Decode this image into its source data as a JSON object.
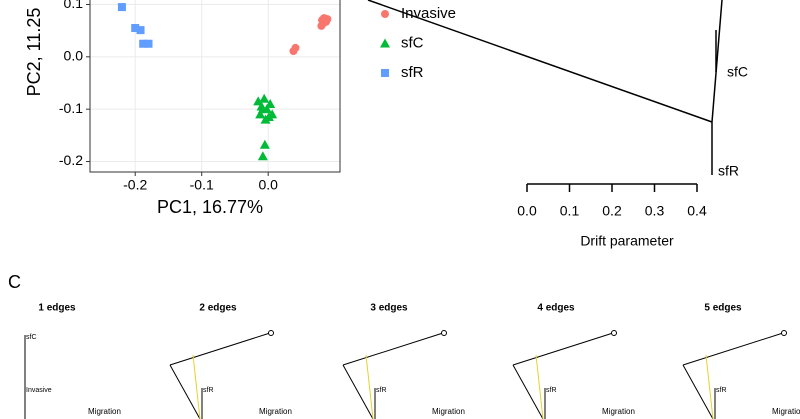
{
  "chart_data": {
    "type": "scatter",
    "x_label": "PC1, 16.77%",
    "y_label": "PC2, 11.25",
    "xlim": [
      -0.268,
      0.108
    ],
    "ylim": [
      -0.22,
      0.12
    ],
    "xticks": [
      -0.2,
      -0.1,
      {
        "value": 0,
        "label": "0.0"
      }
    ],
    "yticks": [
      -0.2,
      -0.1,
      {
        "value": 0,
        "label": "0.0"
      },
      0.1
    ],
    "grid": true,
    "series": [
      {
        "name": "Invasive",
        "color": "#F8766D",
        "marker": "circle",
        "x": [
          0.081,
          0.084,
          0.087,
          0.08,
          0.089,
          0.083,
          0.041,
          0.038
        ],
        "y": [
          0.07,
          0.074,
          0.067,
          0.059,
          0.072,
          0.064,
          0.017,
          0.011
        ]
      },
      {
        "name": "sfC",
        "color": "#00BA38",
        "marker": "triangle",
        "x": [
          -0.015,
          -0.01,
          -0.006,
          -0.002,
          0.003,
          0.006,
          -0.012,
          -0.004,
          0.001,
          -0.008,
          -0.005,
          -0.008
        ],
        "y": [
          -0.085,
          -0.095,
          -0.08,
          -0.1,
          -0.09,
          -0.11,
          -0.11,
          -0.12,
          -0.115,
          -0.1,
          -0.168,
          -0.19
        ]
      },
      {
        "name": "sfR",
        "color": "#619CFF",
        "marker": "square",
        "x": [
          -0.22,
          -0.2,
          -0.192,
          -0.188,
          -0.18
        ],
        "y": [
          0.095,
          0.055,
          0.051,
          0.025,
          0.025
        ]
      }
    ]
  },
  "tree": {
    "leaves": [
      "sfC",
      "sfR"
    ],
    "axis_label": "Drift parameter",
    "xticks": [
      {
        "value": 0,
        "label": "0.0"
      },
      0.1,
      0.2,
      0.3,
      0.4
    ]
  },
  "panel_c": {
    "letter": "C",
    "panels": [
      {
        "title": "1 edges",
        "labels": [
          "sfC",
          "Invasive",
          "Migration"
        ]
      },
      {
        "title": "2 edges",
        "labels": [
          "sfR",
          "Migration"
        ]
      },
      {
        "title": "3 edges",
        "labels": [
          "sfR",
          "Migration"
        ]
      },
      {
        "title": "4 edges",
        "labels": [
          "sfR",
          "Migration"
        ]
      },
      {
        "title": "5 edges",
        "labels": [
          "sfR",
          "Migration"
        ]
      }
    ]
  }
}
